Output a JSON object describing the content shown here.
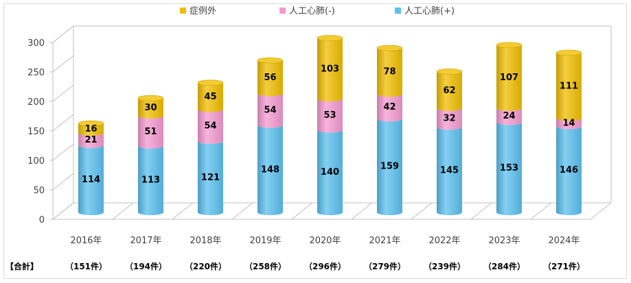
{
  "chart_data": {
    "type": "bar",
    "stacked": true,
    "style": "3d-cylinder",
    "categories": [
      "2016年",
      "2017年",
      "2018年",
      "2019年",
      "2020年",
      "2021年",
      "2022年",
      "2023年",
      "2024年"
    ],
    "series": [
      {
        "name": "人工心肺(+)",
        "color": "#5bc0ef",
        "values": [
          114,
          113,
          121,
          148,
          140,
          159,
          145,
          153,
          146
        ]
      },
      {
        "name": "人工心肺(-)",
        "color": "#f49ad0",
        "values": [
          21,
          51,
          54,
          54,
          53,
          42,
          32,
          24,
          14
        ]
      },
      {
        "name": "症例外",
        "color": "#f0be00",
        "values": [
          16,
          30,
          45,
          56,
          103,
          78,
          62,
          107,
          111
        ]
      }
    ],
    "ylim": [
      0,
      300
    ],
    "yticks": [
      0,
      50,
      100,
      150,
      200,
      250,
      300
    ],
    "grid": false,
    "legend": "top",
    "totals_label": "【合計】",
    "totals": [
      "（151件）",
      "（194件）",
      "（220件）",
      "（258件）",
      "（296件）",
      "（279件）",
      "（239件）",
      "（284件）",
      "（271件）"
    ]
  }
}
